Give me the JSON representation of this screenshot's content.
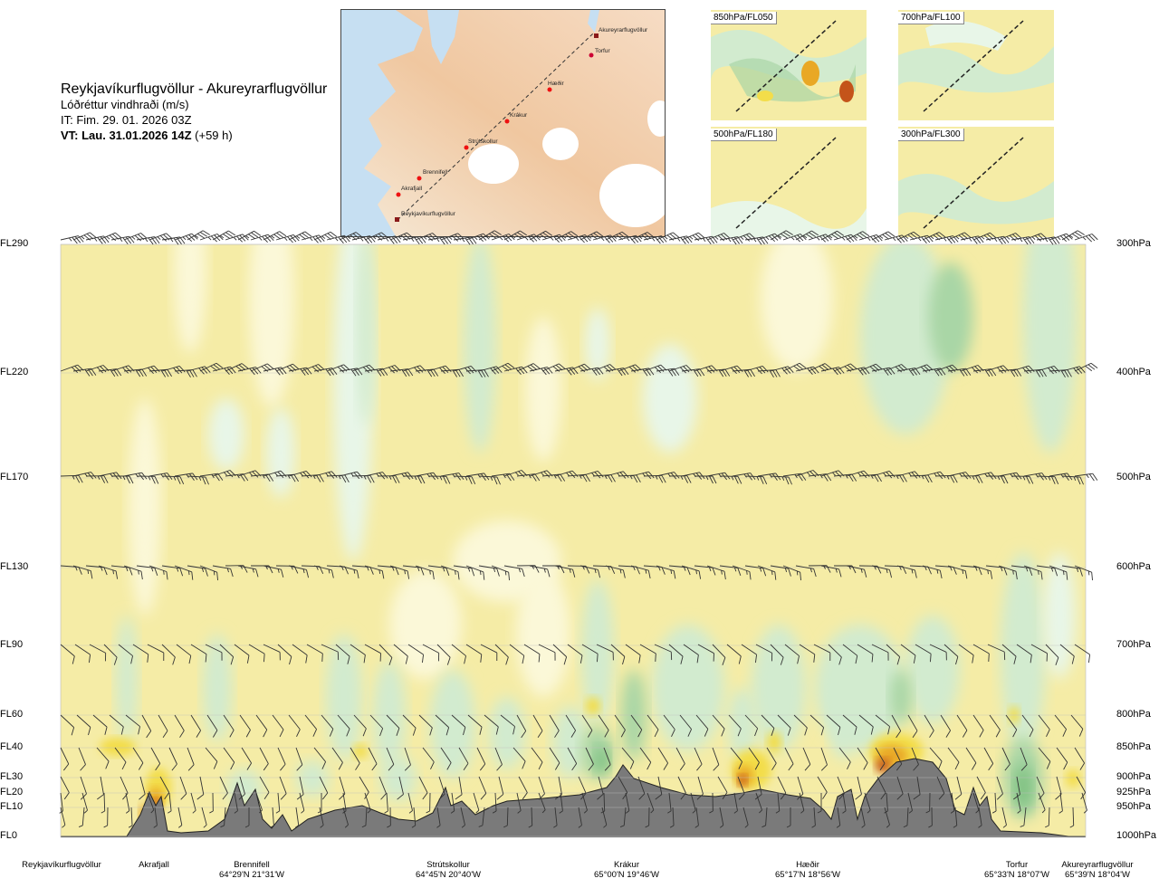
{
  "header": {
    "route": "Reykjavíkurflugvöllur - Akureyrarflugvöllur",
    "variable": "Lóðréttur vindhraði (m/s)",
    "it": "IT: Fim. 29. 01. 2026 03Z",
    "vt_bold": "VT: Lau. 31.01.2026 14Z",
    "vt_offset": "(+59 h)"
  },
  "route_map": {
    "points": [
      "Akureyrarflugvöllur",
      "Torfur",
      "Hæðir",
      "Krákur",
      "Strútskollur",
      "Brennifell",
      "Akrafjall",
      "Reykjavíkurflugvöllur"
    ]
  },
  "mini_maps": [
    {
      "label": "850hPa/FL050"
    },
    {
      "label": "700hPa/FL100"
    },
    {
      "label": "500hPa/FL180"
    },
    {
      "label": "300hPa/FL300"
    }
  ],
  "colors": {
    "neutral": "#f5eca6",
    "weak_down_1": "#fbf8d8",
    "weak_down_2": "#e8f6e8",
    "down_1": "#d2ebcf",
    "down_2": "#a9d6a6",
    "down_3": "#7dc07f",
    "up_1": "#f3dd4a",
    "up_2": "#e9a825",
    "up_3": "#c4541a",
    "terrain": "#7a7a7a"
  },
  "chart_data": {
    "type": "cross-section",
    "y_left_labels": [
      "FL290",
      "FL220",
      "FL170",
      "FL130",
      "FL90",
      "FL60",
      "FL40",
      "FL30",
      "FL20",
      "FL10",
      "FL0"
    ],
    "y_right_labels": [
      "300hPa",
      "400hPa",
      "500hPa",
      "600hPa",
      "700hPa",
      "800hPa",
      "850hPa",
      "900hPa",
      "925hPa",
      "950hPa",
      "1000hPa"
    ],
    "pressure_levels_hpa": [
      300,
      400,
      500,
      600,
      700,
      800,
      850,
      900,
      925,
      950,
      1000
    ],
    "waypoints": [
      {
        "name": "Reykjavíkurflugvöllur",
        "coord": ""
      },
      {
        "name": "Akrafjall",
        "coord": ""
      },
      {
        "name": "Brennifell",
        "coord": "64°29'N 21°31'W"
      },
      {
        "name": "Strútskollur",
        "coord": "64°45'N 20°40'W"
      },
      {
        "name": "Krákur",
        "coord": "65°00'N 19°46'W"
      },
      {
        "name": "Hæðir",
        "coord": "65°17'N 18°56'W"
      },
      {
        "name": "Torfur",
        "coord": "65°33'N 18°07'W"
      },
      {
        "name": "Akureyrarflugvöllur",
        "coord": "65°39'N 18°04'W"
      }
    ],
    "wind_barb_levels": [
      "FL290",
      "FL220",
      "FL170",
      "FL130",
      "FL90",
      "FL60",
      "FL40",
      "FL30",
      "FL20",
      "FL10"
    ],
    "legend": "none",
    "grid": true
  }
}
